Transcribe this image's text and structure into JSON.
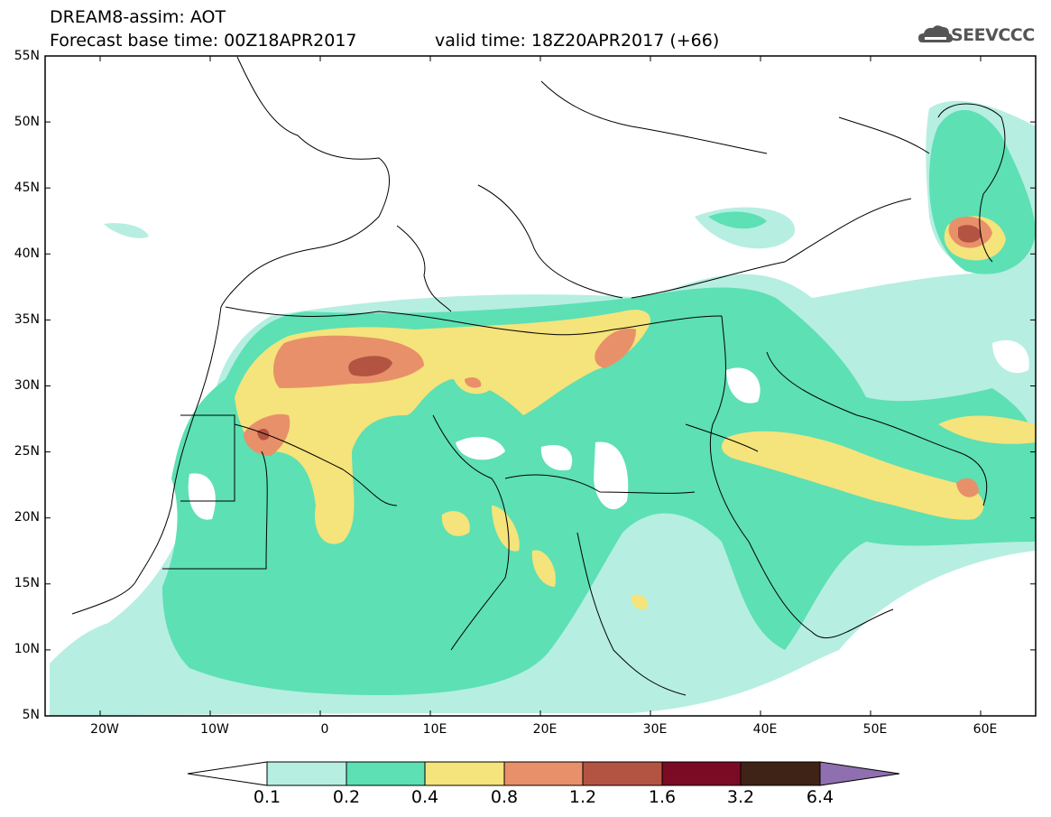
{
  "header": {
    "title_line1": "DREAM8-assim: AOT",
    "title_line2": "Forecast base time: 00Z18APR2017",
    "valid_time": "valid time: 18Z20APR2017 (+66)",
    "logo_text": "SEEVCCC",
    "logo_icon": "cloud-icon"
  },
  "map": {
    "lat_labels": [
      "55N",
      "50N",
      "45N",
      "40N",
      "35N",
      "30N",
      "25N",
      "20N",
      "15N",
      "10N",
      "5N"
    ],
    "lon_labels": [
      "20W",
      "10W",
      "0",
      "10E",
      "20E",
      "30E",
      "40E",
      "50E",
      "60E"
    ],
    "lat_range": [
      5,
      55
    ],
    "lon_range": [
      -25,
      65
    ],
    "colors": {
      "background": "#ffffff",
      "coastline": "#000000"
    }
  },
  "colorbar": {
    "labels": [
      "0.1",
      "0.2",
      "0.4",
      "0.8",
      "1.2",
      "1.6",
      "3.2",
      "6.4"
    ],
    "colors": [
      "#ffffff",
      "#b6eee2",
      "#5de0b3",
      "#f5e37b",
      "#e8906a",
      "#b35442",
      "#7b0a25",
      "#3e2316",
      "#8f6fb0"
    ]
  }
}
